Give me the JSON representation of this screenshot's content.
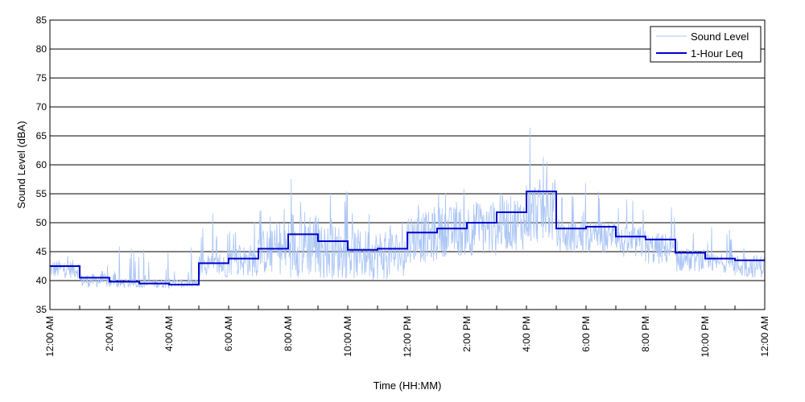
{
  "chart_data": {
    "type": "line",
    "title": "",
    "xlabel": "Time (HH:MM)",
    "ylabel": "Sound Level (dBA)",
    "ylim": [
      35,
      85
    ],
    "yticks": [
      35,
      40,
      45,
      50,
      55,
      60,
      65,
      70,
      75,
      80,
      85
    ],
    "xlim_hours": [
      0,
      24
    ],
    "xticks": [
      {
        "hour": 0,
        "label": "12:00 AM"
      },
      {
        "hour": 2,
        "label": "2:00 AM"
      },
      {
        "hour": 4,
        "label": "4:00 AM"
      },
      {
        "hour": 6,
        "label": "6:00 AM"
      },
      {
        "hour": 8,
        "label": "8:00 AM"
      },
      {
        "hour": 10,
        "label": "10:00 AM"
      },
      {
        "hour": 12,
        "label": "12:00 PM"
      },
      {
        "hour": 14,
        "label": "2:00 PM"
      },
      {
        "hour": 16,
        "label": "4:00 PM"
      },
      {
        "hour": 18,
        "label": "6:00 PM"
      },
      {
        "hour": 20,
        "label": "8:00 PM"
      },
      {
        "hour": 22,
        "label": "10:00 PM"
      },
      {
        "hour": 24,
        "label": "12:00 AM"
      }
    ],
    "grid": "horizontal",
    "legend": {
      "placement": "top-right",
      "entries": [
        "Sound Level",
        "1-Hour Leq"
      ]
    },
    "series": [
      {
        "name": "Sound Level",
        "color": "#a9c4f5",
        "style": "thin-line",
        "note": "approximate envelope per hour: [hour, min, max, median]",
        "envelope": [
          [
            0,
            40,
            46,
            42
          ],
          [
            1,
            38.5,
            44,
            40
          ],
          [
            2,
            38.5,
            46,
            39.5
          ],
          [
            3,
            38.5,
            46,
            39.5
          ],
          [
            4,
            38.5,
            46,
            39.5
          ],
          [
            5,
            40,
            52,
            42.5
          ],
          [
            6,
            40,
            52,
            43.5
          ],
          [
            7,
            40,
            53,
            45
          ],
          [
            8,
            39,
            59.5,
            46.5
          ],
          [
            9,
            39,
            56,
            45
          ],
          [
            10,
            39,
            53,
            44.5
          ],
          [
            11,
            39,
            52,
            44.5
          ],
          [
            12,
            42,
            55,
            47.5
          ],
          [
            13,
            43,
            56,
            48.5
          ],
          [
            14,
            43,
            57,
            49
          ],
          [
            15,
            44,
            58,
            50
          ],
          [
            16,
            45,
            70.5,
            52
          ],
          [
            17,
            44,
            57,
            47.5
          ],
          [
            18,
            44,
            56,
            47.5
          ],
          [
            19,
            43,
            55,
            46.5
          ],
          [
            20,
            42,
            53,
            45.5
          ],
          [
            21,
            41,
            51,
            43.5
          ],
          [
            22,
            41,
            51,
            43
          ],
          [
            23,
            40,
            50,
            42.5
          ]
        ]
      },
      {
        "name": "1-Hour Leq",
        "color": "#0000cc",
        "style": "step",
        "x": [
          0,
          1,
          2,
          3,
          4,
          5,
          6,
          7,
          8,
          9,
          10,
          11,
          12,
          13,
          14,
          15,
          16,
          17,
          18,
          19,
          20,
          21,
          22,
          23
        ],
        "values": [
          42.5,
          40.5,
          39.8,
          39.5,
          39.3,
          43.0,
          43.8,
          45.5,
          48.0,
          46.8,
          45.3,
          45.5,
          48.3,
          49.0,
          50.0,
          51.8,
          55.4,
          49.0,
          49.3,
          47.6,
          47.1,
          44.8,
          43.8,
          43.5
        ]
      }
    ]
  }
}
